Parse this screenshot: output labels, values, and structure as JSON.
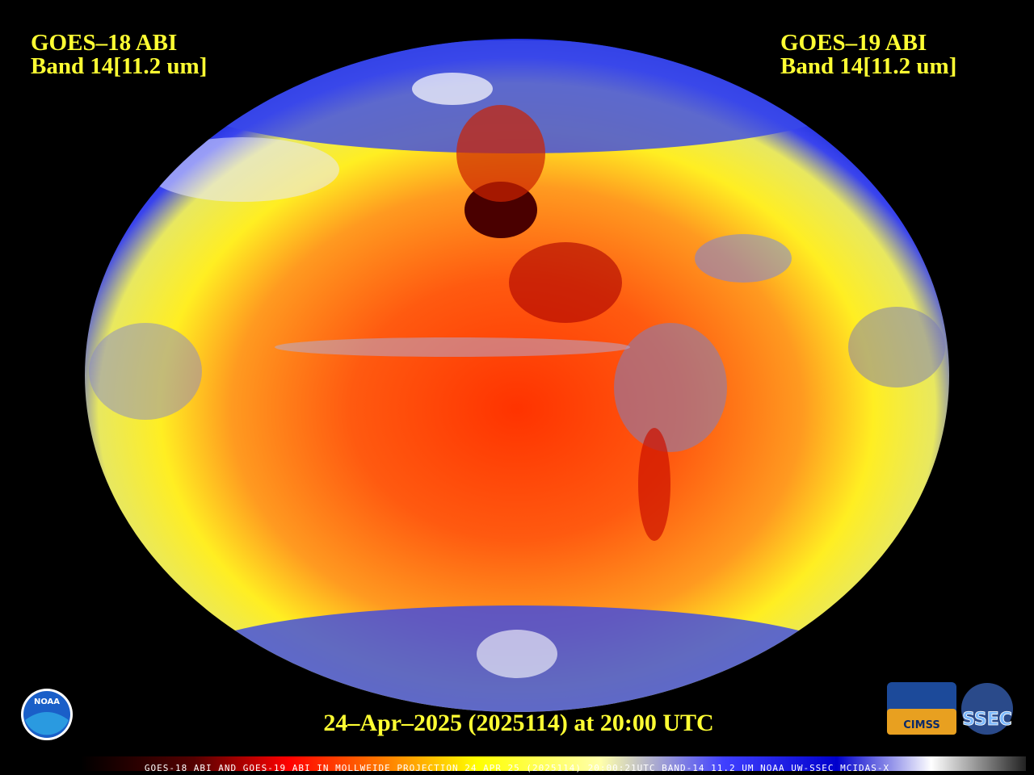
{
  "header": {
    "left": {
      "satellite": "GOES–18 ABI",
      "band": "Band 14[11.2 um]"
    },
    "right": {
      "satellite": "GOES–19 ABI",
      "band": "Band 14[11.2 um]"
    }
  },
  "timestamp": "24–Apr–2025 (2025114) at 20:00 UTC",
  "footer": "GOES-18 ABI AND GOES-19 ABI IN MOLLWEIDE PROJECTION 24 APR 25 (2025114) 20:00:21UTC BAND-14 11.2 UM NOAA UW-SSEC MCIDAS-X",
  "logos": {
    "noaa": "NOAA",
    "cimss": "CIMSS",
    "ssec": "SSEC"
  }
}
